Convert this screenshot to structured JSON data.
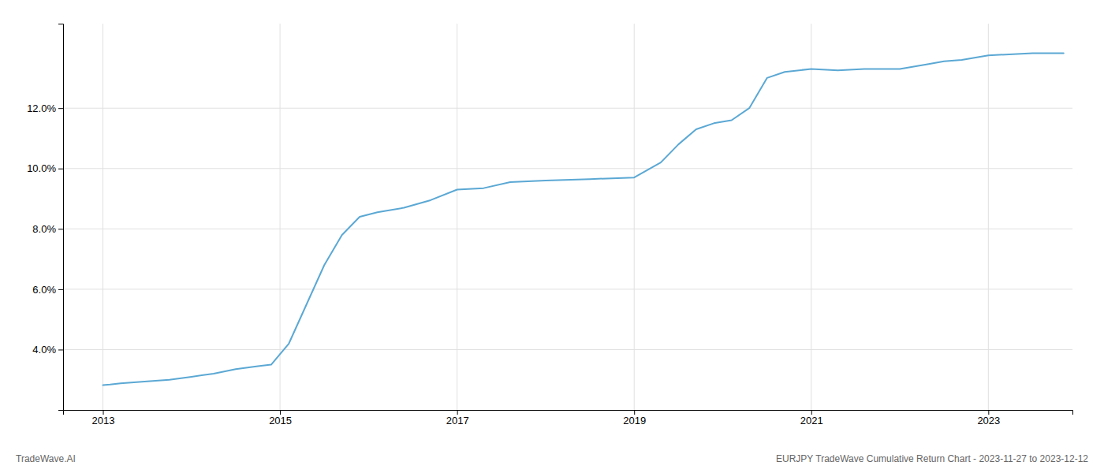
{
  "chart_data": {
    "type": "line",
    "annotations": [
      "TradeWave.AI",
      "EURJPY TradeWave Cumulative Return Chart - 2023-11-27 to 2023-12-12"
    ],
    "x": [
      2013.0,
      2013.08,
      2013.2,
      2013.5,
      2013.75,
      2014.0,
      2014.25,
      2014.5,
      2014.75,
      2014.9,
      2015.1,
      2015.3,
      2015.5,
      2015.7,
      2015.9,
      2016.1,
      2016.4,
      2016.7,
      2017.0,
      2017.3,
      2017.6,
      2018.0,
      2018.5,
      2019.0,
      2019.3,
      2019.5,
      2019.7,
      2019.9,
      2020.1,
      2020.3,
      2020.5,
      2020.7,
      2021.0,
      2021.3,
      2021.6,
      2022.0,
      2022.3,
      2022.5,
      2022.7,
      2023.0,
      2023.5,
      2023.85
    ],
    "values": [
      2.82,
      2.84,
      2.88,
      2.95,
      3.0,
      3.1,
      3.2,
      3.35,
      3.45,
      3.5,
      4.2,
      5.5,
      6.8,
      7.8,
      8.4,
      8.55,
      8.7,
      8.95,
      9.3,
      9.35,
      9.55,
      9.6,
      9.65,
      9.7,
      10.2,
      10.8,
      11.3,
      11.5,
      11.6,
      12.0,
      13.0,
      13.2,
      13.3,
      13.25,
      13.3,
      13.3,
      13.45,
      13.55,
      13.6,
      13.75,
      13.82,
      13.82
    ],
    "color": "#5ba8d4",
    "xlim": [
      2012.55,
      2023.95
    ],
    "ylim": [
      2.0,
      14.8
    ],
    "xticks": [
      2013,
      2015,
      2017,
      2019,
      2021,
      2023
    ],
    "yticks": [
      {
        "value": 4.0,
        "label": "4.0%"
      },
      {
        "value": 6.0,
        "label": "6.0%"
      },
      {
        "value": 8.0,
        "label": "8.0%"
      },
      {
        "value": 10.0,
        "label": "10.0%"
      },
      {
        "value": 12.0,
        "label": "12.0%"
      }
    ],
    "grid": true
  }
}
